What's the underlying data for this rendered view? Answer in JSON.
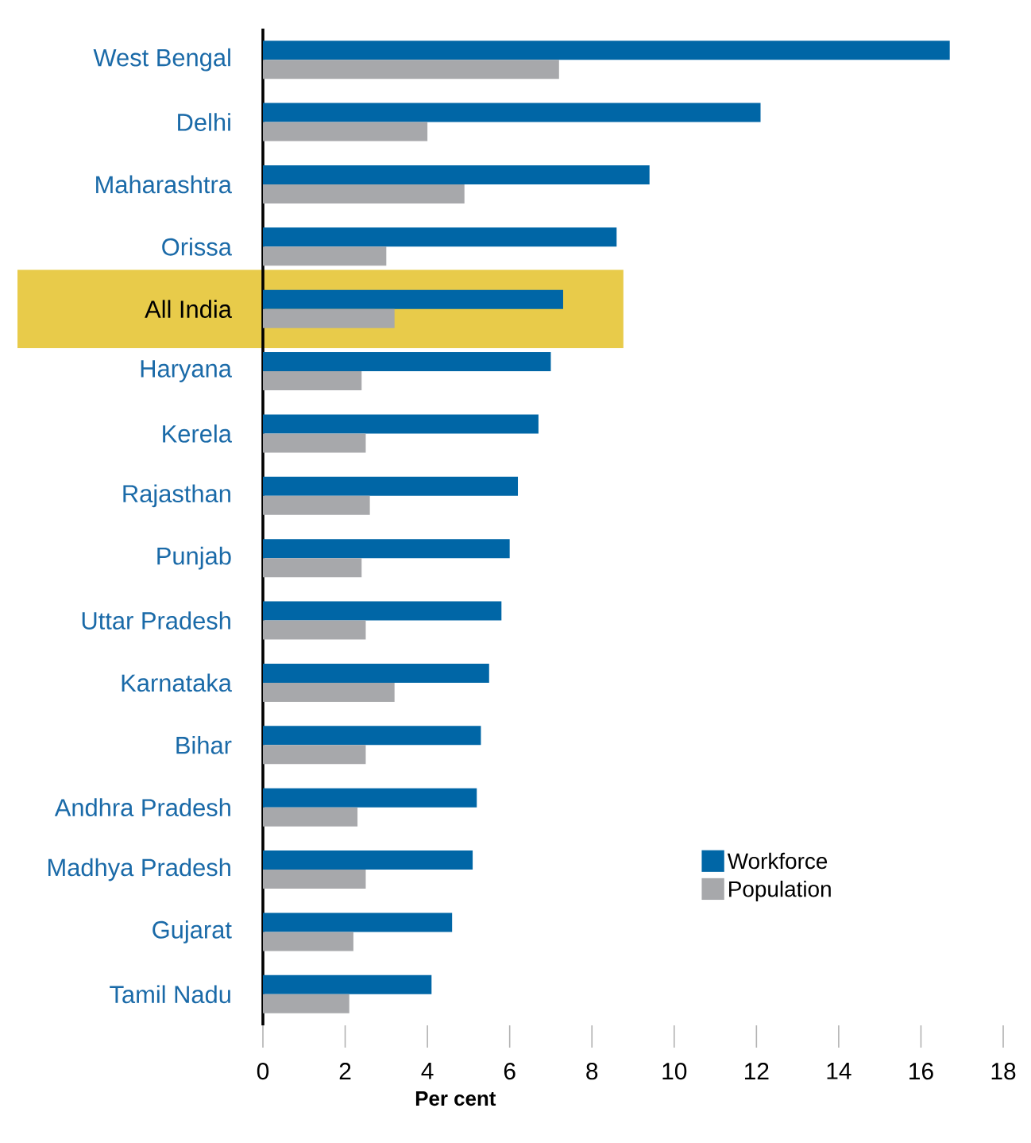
{
  "chart_data": {
    "type": "bar",
    "orientation": "horizontal",
    "xlabel": "Per cent",
    "categories": [
      "West Bengal",
      "Delhi",
      "Maharashtra",
      "Orissa",
      "All India",
      "Haryana",
      "Kerela",
      "Rajasthan",
      "Punjab",
      "Uttar Pradesh",
      "Karnataka",
      "Bihar",
      "Andhra Pradesh",
      "Madhya Pradesh",
      "Gujarat",
      "Tamil Nadu"
    ],
    "series": [
      {
        "name": "Workforce",
        "color": "#0066a6",
        "values": [
          16.7,
          12.1,
          9.4,
          8.6,
          7.3,
          7.0,
          6.7,
          6.2,
          6.0,
          5.8,
          5.5,
          5.3,
          5.2,
          5.1,
          4.6,
          4.1
        ]
      },
      {
        "name": "Population",
        "color": "#a7a8ab",
        "values": [
          7.2,
          4.0,
          4.9,
          3.0,
          3.2,
          2.4,
          2.5,
          2.6,
          2.4,
          2.5,
          3.2,
          2.5,
          2.3,
          2.5,
          2.2,
          2.1
        ]
      }
    ],
    "xlim": [
      0,
      18
    ],
    "xticks": [
      0,
      2,
      4,
      6,
      8,
      10,
      12,
      14,
      16,
      18
    ],
    "bands": [
      {
        "axis": "y",
        "from": "All India",
        "to": "All India",
        "color": "#e8cb4a"
      }
    ],
    "legend": "bottom right",
    "grid": false
  }
}
